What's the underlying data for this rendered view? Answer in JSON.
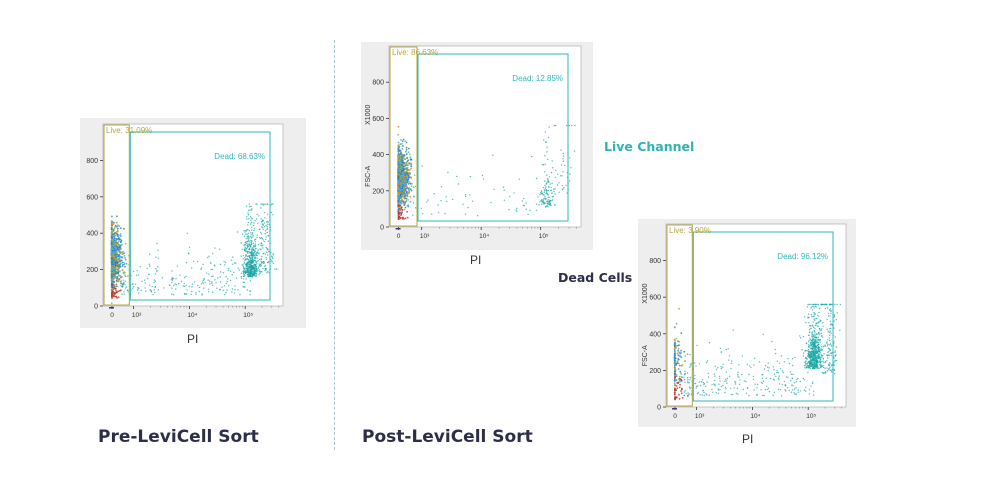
{
  "panels": [
    {
      "caption": "Pre-LeviCell Sort",
      "x_label": "PI",
      "y_label": "",
      "y_multiplier": "",
      "chart_data": {
        "type": "scatter",
        "title": "",
        "xlabel": "PI",
        "ylabel": "",
        "x_scale": "biexponential",
        "x_ticks": [
          "0",
          "10³",
          "10⁴",
          "10⁵"
        ],
        "y_ticks": [
          "0",
          "200",
          "400",
          "600",
          "800"
        ],
        "ylim": [
          0,
          1000
        ],
        "gates": [
          {
            "name": "Live",
            "percent": "31.09%",
            "color": "#b5a640"
          },
          {
            "name": "Dead",
            "percent": "68.63%",
            "color": "#2fb8b8"
          }
        ],
        "populations": [
          {
            "name": "live",
            "pi_center": 0,
            "fsc_center": 270,
            "relative_size": 0.31
          },
          {
            "name": "dead",
            "pi_center": 150000,
            "fsc_center": 200,
            "relative_size": 0.69
          }
        ]
      }
    },
    {
      "caption": "Post-LeviCell Sort",
      "x_label": "PI",
      "y_label": "FSC-A",
      "y_multiplier": "X1000",
      "chart_data": {
        "type": "scatter",
        "title": "",
        "xlabel": "PI",
        "ylabel": "FSC-A",
        "x_scale": "biexponential",
        "x_ticks": [
          "0",
          "10³",
          "10⁴",
          "10⁵"
        ],
        "y_ticks": [
          "0",
          "200",
          "400",
          "600",
          "800"
        ],
        "ylim": [
          0,
          1000
        ],
        "gates": [
          {
            "name": "Live",
            "percent": "86.63%",
            "color": "#b5a640"
          },
          {
            "name": "Dead",
            "percent": "12.85%",
            "color": "#2fb8b8"
          }
        ],
        "populations": [
          {
            "name": "live",
            "pi_center": 0,
            "fsc_center": 270,
            "relative_size": 0.87
          },
          {
            "name": "dead",
            "pi_center": 150000,
            "fsc_center": 150,
            "relative_size": 0.13
          }
        ]
      },
      "side_label": "Live Channel",
      "side_label_color": "#2fb3b3"
    },
    {
      "caption": "",
      "x_label": "PI",
      "y_label": "FSC-A",
      "y_multiplier": "X1000",
      "chart_data": {
        "type": "scatter",
        "title": "",
        "xlabel": "PI",
        "ylabel": "FSC-A",
        "x_scale": "biexponential",
        "x_ticks": [
          "0",
          "10³",
          "10⁴",
          "10⁵"
        ],
        "y_ticks": [
          "0",
          "200",
          "400",
          "600",
          "800"
        ],
        "ylim": [
          0,
          1000
        ],
        "gates": [
          {
            "name": "Live",
            "percent": "3.90%",
            "color": "#b5a640"
          },
          {
            "name": "Dead",
            "percent": "96.12%",
            "color": "#2fb8b8"
          }
        ],
        "populations": [
          {
            "name": "live",
            "pi_center": 0,
            "fsc_center": 250,
            "relative_size": 0.04
          },
          {
            "name": "dead",
            "pi_center": 150000,
            "fsc_center": 250,
            "relative_size": 0.96
          }
        ]
      },
      "side_label": "Dead Cells",
      "side_label_color": "#2c2e4a"
    }
  ],
  "colors": {
    "live_gate": "#b5a640",
    "dead_gate": "#2fb8b8",
    "live_dots": [
      "#1e88e5",
      "#4aa3df",
      "#e08a1e",
      "#8bbf3f",
      "#4e7f2a"
    ],
    "dead_dots": "#19a7a7",
    "debris": "#c0392b"
  }
}
